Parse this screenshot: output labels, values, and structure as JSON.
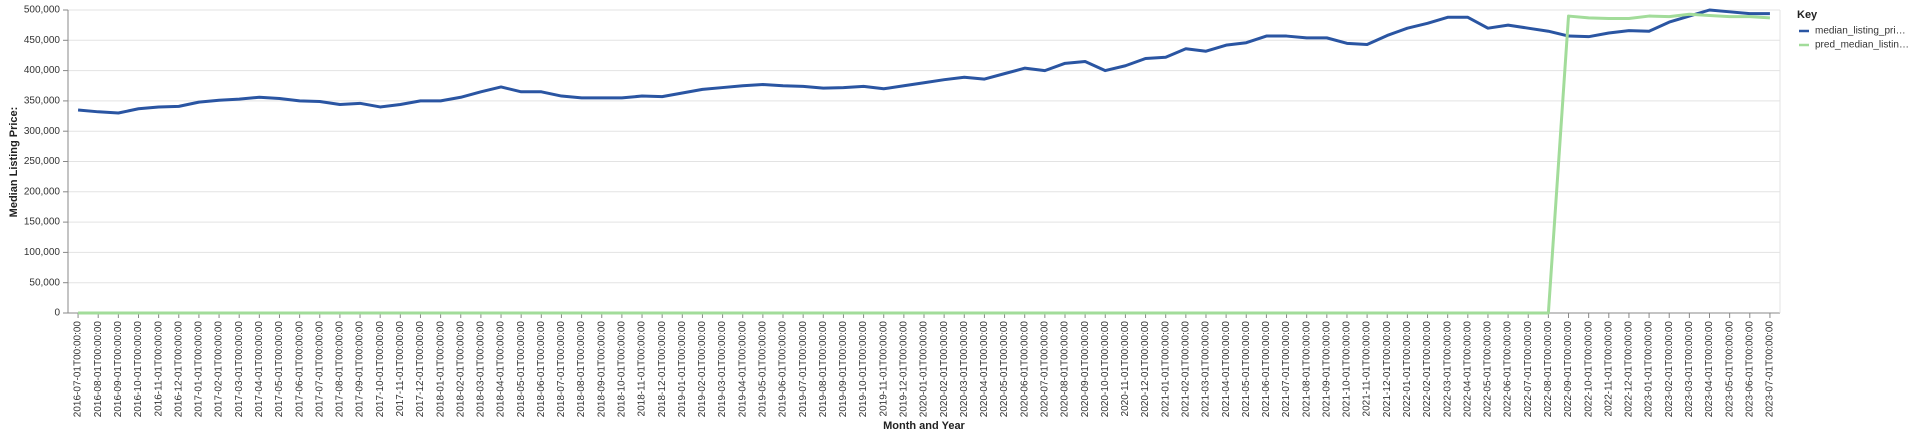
{
  "chart_data": {
    "type": "line",
    "y_label": "Median Listing Price:",
    "x_label": "Month and Year",
    "legend_title": "Key",
    "categories": [
      "2016-07-01T00:00:00",
      "2016-08-01T00:00:00",
      "2016-09-01T00:00:00",
      "2016-10-01T00:00:00",
      "2016-11-01T00:00:00",
      "2016-12-01T00:00:00",
      "2017-01-01T00:00:00",
      "2017-02-01T00:00:00",
      "2017-03-01T00:00:00",
      "2017-04-01T00:00:00",
      "2017-05-01T00:00:00",
      "2017-06-01T00:00:00",
      "2017-07-01T00:00:00",
      "2017-08-01T00:00:00",
      "2017-09-01T00:00:00",
      "2017-10-01T00:00:00",
      "2017-11-01T00:00:00",
      "2017-12-01T00:00:00",
      "2018-01-01T00:00:00",
      "2018-02-01T00:00:00",
      "2018-03-01T00:00:00",
      "2018-04-01T00:00:00",
      "2018-05-01T00:00:00",
      "2018-06-01T00:00:00",
      "2018-07-01T00:00:00",
      "2018-08-01T00:00:00",
      "2018-09-01T00:00:00",
      "2018-10-01T00:00:00",
      "2018-11-01T00:00:00",
      "2018-12-01T00:00:00",
      "2019-01-01T00:00:00",
      "2019-02-01T00:00:00",
      "2019-03-01T00:00:00",
      "2019-04-01T00:00:00",
      "2019-05-01T00:00:00",
      "2019-06-01T00:00:00",
      "2019-07-01T00:00:00",
      "2019-08-01T00:00:00",
      "2019-09-01T00:00:00",
      "2019-10-01T00:00:00",
      "2019-11-01T00:00:00",
      "2019-12-01T00:00:00",
      "2020-01-01T00:00:00",
      "2020-02-01T00:00:00",
      "2020-03-01T00:00:00",
      "2020-04-01T00:00:00",
      "2020-05-01T00:00:00",
      "2020-06-01T00:00:00",
      "2020-07-01T00:00:00",
      "2020-08-01T00:00:00",
      "2020-09-01T00:00:00",
      "2020-10-01T00:00:00",
      "2020-11-01T00:00:00",
      "2020-12-01T00:00:00",
      "2021-01-01T00:00:00",
      "2021-02-01T00:00:00",
      "2021-03-01T00:00:00",
      "2021-04-01T00:00:00",
      "2021-05-01T00:00:00",
      "2021-06-01T00:00:00",
      "2021-07-01T00:00:00",
      "2021-08-01T00:00:00",
      "2021-09-01T00:00:00",
      "2021-10-01T00:00:00",
      "2021-11-01T00:00:00",
      "2021-12-01T00:00:00",
      "2022-01-01T00:00:00",
      "2022-02-01T00:00:00",
      "2022-03-01T00:00:00",
      "2022-04-01T00:00:00",
      "2022-05-01T00:00:00",
      "2022-06-01T00:00:00",
      "2022-07-01T00:00:00",
      "2022-08-01T00:00:00",
      "2022-09-01T00:00:00",
      "2022-10-01T00:00:00",
      "2022-11-01T00:00:00",
      "2022-12-01T00:00:00",
      "2023-01-01T00:00:00",
      "2023-02-01T00:00:00",
      "2023-03-01T00:00:00",
      "2023-04-01T00:00:00",
      "2023-05-01T00:00:00",
      "2023-06-01T00:00:00",
      "2023-07-01T00:00:00"
    ],
    "series": [
      {
        "name": "median_listing_pri…",
        "color": "#2a55a2",
        "values": [
          335000,
          332000,
          330000,
          337000,
          340000,
          341000,
          348000,
          351000,
          353000,
          356000,
          354000,
          350000,
          349000,
          344000,
          346000,
          340000,
          344000,
          350000,
          350000,
          356000,
          365000,
          373000,
          365000,
          365000,
          358000,
          355000,
          355000,
          355000,
          358000,
          357000,
          363000,
          369000,
          372000,
          375000,
          377000,
          375000,
          374000,
          371000,
          372000,
          374000,
          370000,
          375000,
          380000,
          385000,
          389000,
          386000,
          395000,
          404000,
          400000,
          412000,
          415000,
          400000,
          408000,
          420000,
          422000,
          436000,
          432000,
          442000,
          446000,
          457000,
          457000,
          454000,
          454000,
          445000,
          443000,
          458000,
          470000,
          478000,
          488000,
          488000,
          470000,
          475000,
          470000,
          465000,
          457000,
          456000,
          462000,
          466000,
          465000,
          480000,
          490000,
          500000,
          497000,
          494000,
          494000
        ]
      },
      {
        "name": "pred_median_listin…",
        "color": "#a2dc9a",
        "values": [
          0,
          0,
          0,
          0,
          0,
          0,
          0,
          0,
          0,
          0,
          0,
          0,
          0,
          0,
          0,
          0,
          0,
          0,
          0,
          0,
          0,
          0,
          0,
          0,
          0,
          0,
          0,
          0,
          0,
          0,
          0,
          0,
          0,
          0,
          0,
          0,
          0,
          0,
          0,
          0,
          0,
          0,
          0,
          0,
          0,
          0,
          0,
          0,
          0,
          0,
          0,
          0,
          0,
          0,
          0,
          0,
          0,
          0,
          0,
          0,
          0,
          0,
          0,
          0,
          0,
          0,
          0,
          0,
          0,
          0,
          0,
          0,
          0,
          0,
          490000,
          487000,
          486000,
          486000,
          490000,
          489000,
          493000,
          491000,
          489000,
          489000,
          487000
        ]
      }
    ],
    "ylim": [
      0,
      500000
    ],
    "yticks": [
      0,
      {
        "value": 50000,
        "label": "50,000"
      },
      {
        "value": 100000,
        "label": "100,000"
      },
      {
        "value": 150000,
        "label": "150,000"
      },
      {
        "value": 200000,
        "label": "200,000"
      },
      {
        "value": 250000,
        "label": "250,000"
      },
      {
        "value": 300000,
        "label": "300,000"
      },
      {
        "value": 350000,
        "label": "350,000"
      },
      {
        "value": 400000,
        "label": "400,000"
      },
      {
        "value": 450000,
        "label": "450,000"
      },
      {
        "value": 500000,
        "label": "500,000"
      }
    ],
    "grid": true
  }
}
